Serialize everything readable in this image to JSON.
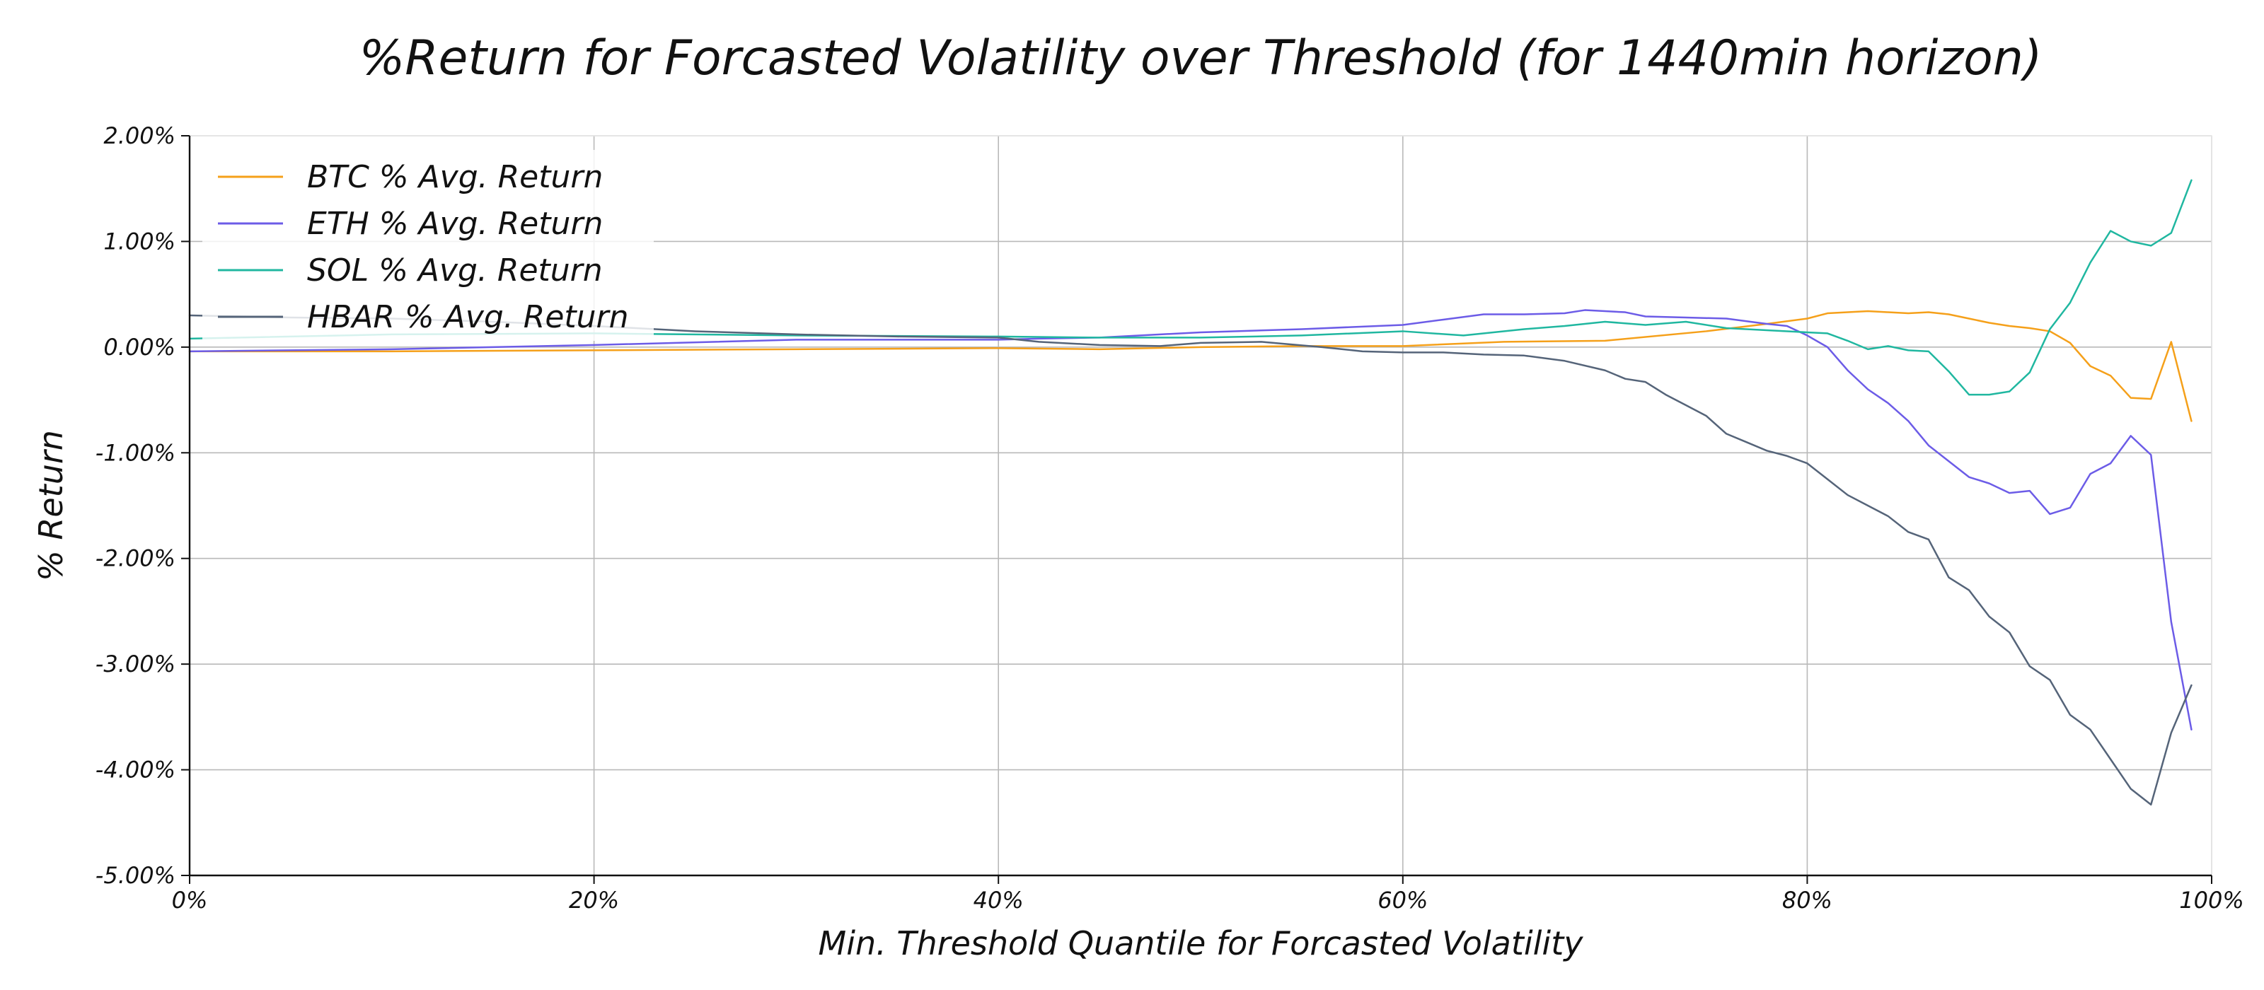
{
  "chart_data": {
    "type": "line",
    "title": "%Return for Forcasted Volatility over Threshold (for 1440min horizon)",
    "xlabel": "Min. Threshold Quantile for Forcasted Volatility",
    "ylabel": "% Return",
    "xlim": [
      0,
      100
    ],
    "ylim": [
      -5,
      2
    ],
    "x_ticks": [
      0,
      20,
      40,
      60,
      80,
      100
    ],
    "x_tick_labels": [
      "0%",
      "20%",
      "40%",
      "60%",
      "80%",
      "100%"
    ],
    "y_ticks": [
      2,
      1,
      0,
      -1,
      -2,
      -3,
      -4,
      -5
    ],
    "y_tick_labels": [
      "2.00%",
      "1.00%",
      "0.00%",
      "-1.00%",
      "-2.00%",
      "-3.00%",
      "-4.00%",
      "-5.00%"
    ],
    "grid": true,
    "legend_position": "top-left",
    "series": [
      {
        "name": "BTC % Avg. Return",
        "color": "#f5a01a",
        "points": [
          [
            0,
            -0.04
          ],
          [
            10,
            -0.04
          ],
          [
            20,
            -0.03
          ],
          [
            30,
            -0.02
          ],
          [
            40,
            -0.01
          ],
          [
            45,
            -0.02
          ],
          [
            50,
            0.0
          ],
          [
            55,
            0.01
          ],
          [
            60,
            0.01
          ],
          [
            65,
            0.05
          ],
          [
            70,
            0.06
          ],
          [
            75,
            0.15
          ],
          [
            78,
            0.22
          ],
          [
            80,
            0.27
          ],
          [
            81,
            0.32
          ],
          [
            82,
            0.33
          ],
          [
            83,
            0.34
          ],
          [
            84,
            0.33
          ],
          [
            85,
            0.32
          ],
          [
            86,
            0.33
          ],
          [
            87,
            0.31
          ],
          [
            88,
            0.27
          ],
          [
            89,
            0.23
          ],
          [
            90,
            0.2
          ],
          [
            91,
            0.18
          ],
          [
            92,
            0.15
          ],
          [
            93,
            0.04
          ],
          [
            94,
            -0.18
          ],
          [
            95,
            -0.27
          ],
          [
            96,
            -0.48
          ],
          [
            97,
            -0.49
          ],
          [
            98,
            0.05
          ],
          [
            99,
            -0.7
          ]
        ]
      },
      {
        "name": "ETH % Avg. Return",
        "color": "#6c5ce7",
        "points": [
          [
            0,
            -0.04
          ],
          [
            10,
            -0.02
          ],
          [
            20,
            0.02
          ],
          [
            30,
            0.07
          ],
          [
            40,
            0.07
          ],
          [
            42,
            0.08
          ],
          [
            45,
            0.09
          ],
          [
            50,
            0.14
          ],
          [
            55,
            0.17
          ],
          [
            60,
            0.21
          ],
          [
            62,
            0.26
          ],
          [
            64,
            0.31
          ],
          [
            66,
            0.31
          ],
          [
            68,
            0.32
          ],
          [
            69,
            0.35
          ],
          [
            70,
            0.34
          ],
          [
            71,
            0.33
          ],
          [
            72,
            0.29
          ],
          [
            74,
            0.28
          ],
          [
            76,
            0.27
          ],
          [
            78,
            0.22
          ],
          [
            79,
            0.2
          ],
          [
            80,
            0.11
          ],
          [
            81,
            0.0
          ],
          [
            82,
            -0.22
          ],
          [
            83,
            -0.4
          ],
          [
            84,
            -0.53
          ],
          [
            85,
            -0.7
          ],
          [
            86,
            -0.93
          ],
          [
            87,
            -1.08
          ],
          [
            88,
            -1.23
          ],
          [
            89,
            -1.29
          ],
          [
            90,
            -1.38
          ],
          [
            91,
            -1.36
          ],
          [
            92,
            -1.58
          ],
          [
            93,
            -1.52
          ],
          [
            94,
            -1.2
          ],
          [
            95,
            -1.1
          ],
          [
            96,
            -0.84
          ],
          [
            97,
            -1.02
          ],
          [
            98,
            -2.6
          ],
          [
            99,
            -3.62
          ]
        ]
      },
      {
        "name": "SOL % Avg. Return",
        "color": "#20b7a0",
        "points": [
          [
            0,
            0.08
          ],
          [
            10,
            0.12
          ],
          [
            20,
            0.13
          ],
          [
            30,
            0.11
          ],
          [
            40,
            0.1
          ],
          [
            45,
            0.09
          ],
          [
            50,
            0.09
          ],
          [
            55,
            0.11
          ],
          [
            60,
            0.15
          ],
          [
            63,
            0.11
          ],
          [
            66,
            0.17
          ],
          [
            68,
            0.2
          ],
          [
            70,
            0.24
          ],
          [
            72,
            0.21
          ],
          [
            74,
            0.24
          ],
          [
            76,
            0.18
          ],
          [
            78,
            0.16
          ],
          [
            80,
            0.14
          ],
          [
            81,
            0.13
          ],
          [
            82,
            0.06
          ],
          [
            83,
            -0.02
          ],
          [
            84,
            0.01
          ],
          [
            85,
            -0.03
          ],
          [
            86,
            -0.04
          ],
          [
            87,
            -0.23
          ],
          [
            88,
            -0.45
          ],
          [
            89,
            -0.45
          ],
          [
            90,
            -0.42
          ],
          [
            91,
            -0.24
          ],
          [
            92,
            0.17
          ],
          [
            93,
            0.42
          ],
          [
            94,
            0.8
          ],
          [
            95,
            1.1
          ],
          [
            96,
            1.0
          ],
          [
            97,
            0.96
          ],
          [
            98,
            1.08
          ],
          [
            99,
            1.58
          ]
        ]
      },
      {
        "name": "HBAR % Avg. Return",
        "color": "#556479",
        "points": [
          [
            0,
            0.3
          ],
          [
            5,
            0.28
          ],
          [
            10,
            0.27
          ],
          [
            15,
            0.24
          ],
          [
            20,
            0.2
          ],
          [
            25,
            0.15
          ],
          [
            30,
            0.12
          ],
          [
            35,
            0.1
          ],
          [
            40,
            0.09
          ],
          [
            42,
            0.05
          ],
          [
            45,
            0.02
          ],
          [
            48,
            0.01
          ],
          [
            50,
            0.04
          ],
          [
            53,
            0.05
          ],
          [
            56,
            0.0
          ],
          [
            58,
            -0.04
          ],
          [
            60,
            -0.05
          ],
          [
            62,
            -0.05
          ],
          [
            64,
            -0.07
          ],
          [
            66,
            -0.08
          ],
          [
            68,
            -0.13
          ],
          [
            70,
            -0.22
          ],
          [
            71,
            -0.3
          ],
          [
            72,
            -0.33
          ],
          [
            73,
            -0.45
          ],
          [
            74,
            -0.55
          ],
          [
            75,
            -0.65
          ],
          [
            76,
            -0.82
          ],
          [
            77,
            -0.9
          ],
          [
            78,
            -0.98
          ],
          [
            79,
            -1.03
          ],
          [
            80,
            -1.1
          ],
          [
            81,
            -1.25
          ],
          [
            82,
            -1.4
          ],
          [
            83,
            -1.5
          ],
          [
            84,
            -1.6
          ],
          [
            85,
            -1.75
          ],
          [
            86,
            -1.82
          ],
          [
            87,
            -2.18
          ],
          [
            88,
            -2.3
          ],
          [
            89,
            -2.55
          ],
          [
            90,
            -2.7
          ],
          [
            91,
            -3.02
          ],
          [
            92,
            -3.15
          ],
          [
            93,
            -3.48
          ],
          [
            94,
            -3.62
          ],
          [
            95,
            -3.9
          ],
          [
            96,
            -4.18
          ],
          [
            97,
            -4.33
          ],
          [
            98,
            -3.65
          ],
          [
            99,
            -3.2
          ]
        ]
      }
    ]
  }
}
